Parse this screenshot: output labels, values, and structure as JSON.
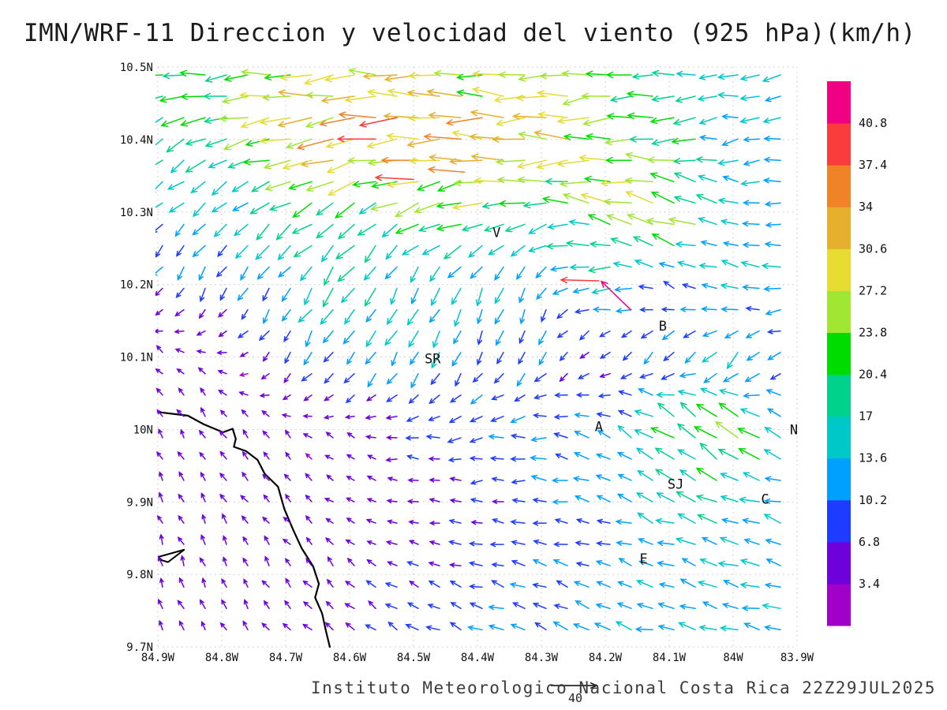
{
  "title": "IMN/WRF-11 Direccion y velocidad del viento (925 hPa)(km/h)",
  "footer": "Instituto Meteorologico Nacional Costa Rica  22Z29JUL2025",
  "chart_data": {
    "type": "quiver",
    "title": "IMN/WRF-11 Direccion y velocidad del viento (925 hPa)(km/h)",
    "unit": "km/h",
    "x_range": [
      -84.9,
      -83.9
    ],
    "y_range": [
      9.7,
      10.5
    ],
    "x_ticks": [
      "84.9W",
      "84.8W",
      "84.7W",
      "84.6W",
      "84.5W",
      "84.4W",
      "84.3W",
      "84.2W",
      "84.1W",
      "84W",
      "83.9W"
    ],
    "y_ticks": [
      "10.5N",
      "10.4N",
      "10.3N",
      "10.2N",
      "10.1N",
      "10N",
      "9.9N",
      "9.8N",
      "9.7N"
    ],
    "grid": true,
    "colorbar": {
      "levels": [
        3.4,
        6.8,
        10.2,
        13.6,
        17,
        20.4,
        23.8,
        27.2,
        30.6,
        34,
        37.4,
        40.8
      ],
      "labels": [
        "3.4",
        "6.8",
        "10.2",
        "13.6",
        "17",
        "20.4",
        "23.8",
        "27.2",
        "30.6",
        "34",
        "37.4",
        "40.8"
      ],
      "colors": [
        "#a000c8",
        "#6e00dc",
        "#1e3cff",
        "#00a0ff",
        "#00c8c8",
        "#00d28c",
        "#00dc00",
        "#a0e632",
        "#e6dc32",
        "#e6af2d",
        "#f08228",
        "#fa3c3c",
        "#f00082"
      ],
      "unit": "km/h"
    },
    "stations": [
      {
        "label": "V",
        "lon": -84.37,
        "lat": 10.272
      },
      {
        "label": "B",
        "lon": -84.11,
        "lat": 10.143
      },
      {
        "label": "SR",
        "lon": -84.47,
        "lat": 10.098
      },
      {
        "label": "A",
        "lon": -84.21,
        "lat": 10.004
      },
      {
        "label": "N",
        "lon": -83.905,
        "lat": 10.0
      },
      {
        "label": "SJ",
        "lon": -84.09,
        "lat": 9.925
      },
      {
        "label": "C",
        "lon": -83.95,
        "lat": 9.904
      },
      {
        "label": "E",
        "lon": -84.14,
        "lat": 9.822
      }
    ],
    "coastline": [
      [
        -84.9,
        10.024
      ],
      [
        -84.853,
        10.019
      ],
      [
        -84.828,
        10.007
      ],
      [
        -84.798,
        9.996
      ],
      [
        -84.783,
        10.001
      ],
      [
        -84.778,
        9.987
      ],
      [
        -84.781,
        9.976
      ],
      [
        -84.762,
        9.97
      ],
      [
        -84.744,
        9.958
      ],
      [
        -84.733,
        9.939
      ],
      [
        -84.712,
        9.921
      ],
      [
        -84.702,
        9.89
      ],
      [
        -84.688,
        9.861
      ],
      [
        -84.675,
        9.836
      ],
      [
        -84.657,
        9.811
      ],
      [
        -84.648,
        9.787
      ],
      [
        -84.654,
        9.768
      ],
      [
        -84.643,
        9.746
      ],
      [
        -84.637,
        9.722
      ],
      [
        -84.631,
        9.7
      ]
    ],
    "peninsula": [
      [
        -84.9,
        9.824
      ],
      [
        -84.859,
        9.834
      ],
      [
        -84.884,
        9.817
      ],
      [
        -84.9,
        9.821
      ]
    ],
    "wind_field": {
      "comment": "coarse sampled wind grid, u=eastward km/h, v=northward km/h, rows north to south",
      "lons": [
        -84.9,
        -84.8,
        -84.7,
        -84.6,
        -84.5,
        -84.4,
        -84.3,
        -84.2,
        -84.1,
        -84.0,
        -83.9
      ],
      "lats": [
        10.5,
        10.4,
        10.3,
        10.2,
        10.1,
        10.0,
        9.9,
        9.8,
        9.7
      ],
      "u": [
        [
          -20,
          -23,
          -26,
          -28,
          -27,
          -26,
          -24,
          -22,
          -18,
          -15,
          -13
        ],
        [
          -14,
          -20,
          -28,
          -33,
          -36,
          -35,
          -30,
          -26,
          -20,
          -15,
          -12
        ],
        [
          -9,
          -11,
          -13,
          -15,
          -18,
          -22,
          -18,
          -24,
          -28,
          -14,
          -10
        ],
        [
          -4,
          -5,
          -7,
          -9,
          -7,
          -5,
          -6,
          -16,
          -8,
          -12,
          -14
        ],
        [
          -3,
          -4,
          -5,
          -6,
          -6,
          -5,
          -5,
          -4,
          -8,
          -10,
          -6
        ],
        [
          -2,
          -3,
          -3,
          -4,
          -8,
          -10,
          -12,
          -10,
          -16,
          -20,
          -10
        ],
        [
          -2,
          -3,
          -3,
          -3,
          -5,
          -7,
          -9,
          -10,
          -14,
          -16,
          -12
        ],
        [
          -2,
          -2,
          -3,
          -4,
          -6,
          -8,
          -9,
          -10,
          -12,
          -14,
          -13
        ],
        [
          -2,
          -3,
          -4,
          -6,
          -8,
          -10,
          -11,
          -12,
          -13,
          -12,
          -11
        ]
      ],
      "v": [
        [
          0,
          -2,
          -2,
          -2,
          -1,
          0,
          0,
          -2,
          -2,
          -2,
          -1
        ],
        [
          -10,
          -9,
          -6,
          -3,
          -1,
          0,
          -1,
          -2,
          -3,
          -2,
          -2
        ],
        [
          -8,
          -9,
          -9,
          -11,
          -9,
          -6,
          -4,
          5,
          9,
          4,
          1
        ],
        [
          -7,
          -9,
          -12,
          -14,
          -13,
          -12,
          -10,
          -2,
          4,
          3,
          2
        ],
        [
          3,
          2,
          -6,
          -10,
          -12,
          -10,
          -8,
          -4,
          -8,
          -12,
          -4
        ],
        [
          4,
          4,
          3,
          2,
          0,
          -2,
          0,
          4,
          12,
          16,
          6
        ],
        [
          4,
          4,
          3,
          2,
          1,
          0,
          1,
          3,
          6,
          5,
          3
        ],
        [
          5,
          5,
          4,
          4,
          3,
          2,
          3,
          3,
          4,
          4,
          3
        ],
        [
          4,
          4,
          4,
          4,
          4,
          4,
          4,
          4,
          3,
          3,
          3
        ]
      ]
    },
    "extra_arrows": [
      {
        "lon": -84.16,
        "lat": 10.165,
        "u": -30,
        "v": 29
      },
      {
        "lon": -84.21,
        "lat": 10.205,
        "u": -38,
        "v": 1
      },
      {
        "lon": -84.5,
        "lat": 10.345,
        "u": -38,
        "v": 2
      },
      {
        "lon": -84.42,
        "lat": 10.355,
        "u": -36,
        "v": 3
      }
    ],
    "ref_arrow": {
      "speed": 40,
      "label": "40"
    }
  }
}
